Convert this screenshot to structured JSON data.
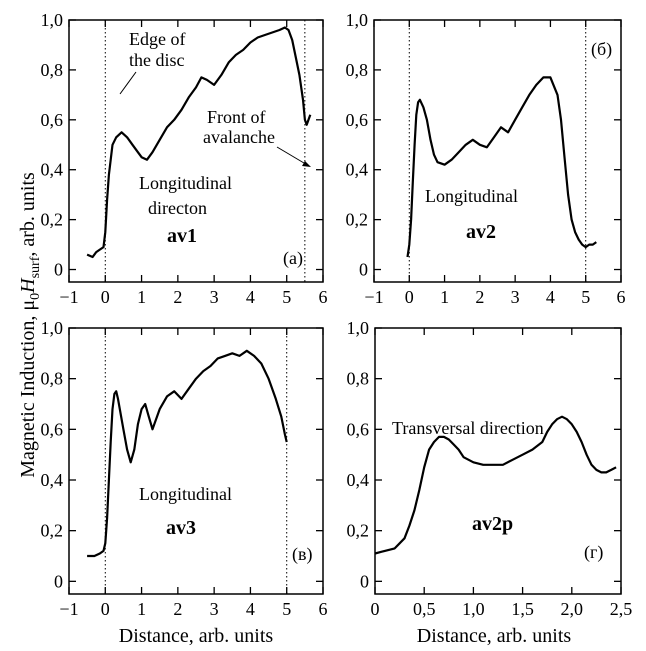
{
  "figure": {
    "ylabel": {
      "pre": "Magnetic Induction, ",
      "mu": "μ",
      "zero": "0",
      "H": "H",
      "surf": "surf",
      "post": ", arb. units"
    },
    "xlabel_bottom_left": "Distance, arb. units",
    "xlabel_bottom_right": "Distance, arb. units"
  },
  "chart_data": [
    {
      "id": "a",
      "type": "line",
      "panel_letter": "(а)",
      "sample": "av1",
      "annotations": [
        "Edge of",
        "the disc",
        "Front of",
        "avalanche",
        "Longitudinal",
        "directon"
      ],
      "xlim": [
        -1,
        6
      ],
      "ylim": [
        -0.05,
        1.0
      ],
      "xticks": [
        -1,
        0,
        1,
        2,
        3,
        4,
        5,
        6
      ],
      "xtick_labels": [
        "−1",
        "0",
        "1",
        "2",
        "3",
        "4",
        "5",
        "6"
      ],
      "yticks": [
        0,
        0.2,
        0.4,
        0.6,
        0.8,
        1.0
      ],
      "ytick_labels": [
        "0",
        "0,2",
        "0,4",
        "0,6",
        "0,8",
        "1,0"
      ],
      "vlines": [
        0,
        5.5
      ],
      "series": [
        {
          "x": [
            -0.5,
            -0.35,
            -0.25,
            -0.15,
            -0.05,
            0,
            0.05,
            0.1,
            0.15,
            0.2,
            0.3,
            0.45,
            0.6,
            0.75,
            0.9,
            1.0,
            1.15,
            1.3,
            1.5,
            1.7,
            1.9,
            2.1,
            2.3,
            2.5,
            2.65,
            2.8,
            3.0,
            3.2,
            3.4,
            3.6,
            3.8,
            4.0,
            4.2,
            4.4,
            4.6,
            4.8,
            4.95,
            5.05,
            5.15,
            5.25,
            5.35,
            5.45,
            5.5,
            5.55,
            5.6,
            5.65
          ],
          "y": [
            0.06,
            0.05,
            0.07,
            0.08,
            0.09,
            0.15,
            0.28,
            0.38,
            0.44,
            0.5,
            0.53,
            0.55,
            0.53,
            0.5,
            0.47,
            0.45,
            0.44,
            0.47,
            0.52,
            0.57,
            0.6,
            0.64,
            0.69,
            0.73,
            0.77,
            0.76,
            0.74,
            0.78,
            0.83,
            0.86,
            0.88,
            0.91,
            0.93,
            0.94,
            0.95,
            0.96,
            0.97,
            0.96,
            0.92,
            0.85,
            0.78,
            0.68,
            0.6,
            0.58,
            0.6,
            0.62
          ]
        }
      ]
    },
    {
      "id": "b",
      "type": "line",
      "panel_letter": "(б)",
      "sample": "av2",
      "annotations": [
        "Longitudinal"
      ],
      "xlim": [
        -1,
        6
      ],
      "ylim": [
        -0.05,
        1.0
      ],
      "xticks": [
        -1,
        0,
        1,
        2,
        3,
        4,
        5,
        6
      ],
      "xtick_labels": [
        "−1",
        "0",
        "1",
        "2",
        "3",
        "4",
        "5",
        "6"
      ],
      "yticks": [
        0,
        0.2,
        0.4,
        0.6,
        0.8,
        1.0
      ],
      "ytick_labels": [
        "0",
        "0,2",
        "0,4",
        "0,6",
        "0,8",
        "1,0"
      ],
      "vlines": [
        0,
        5.0
      ],
      "series": [
        {
          "x": [
            -0.05,
            0.0,
            0.05,
            0.1,
            0.15,
            0.2,
            0.25,
            0.3,
            0.4,
            0.5,
            0.6,
            0.7,
            0.8,
            1.0,
            1.2,
            1.4,
            1.6,
            1.8,
            2.0,
            2.2,
            2.4,
            2.6,
            2.8,
            3.0,
            3.2,
            3.4,
            3.6,
            3.8,
            4.0,
            4.2,
            4.3,
            4.4,
            4.5,
            4.6,
            4.7,
            4.8,
            4.9,
            5.0,
            5.1,
            5.2,
            5.3
          ],
          "y": [
            0.05,
            0.1,
            0.2,
            0.35,
            0.5,
            0.62,
            0.67,
            0.68,
            0.65,
            0.6,
            0.52,
            0.46,
            0.43,
            0.42,
            0.44,
            0.47,
            0.5,
            0.52,
            0.5,
            0.49,
            0.53,
            0.57,
            0.55,
            0.6,
            0.65,
            0.7,
            0.74,
            0.77,
            0.77,
            0.7,
            0.6,
            0.45,
            0.3,
            0.2,
            0.15,
            0.12,
            0.1,
            0.09,
            0.1,
            0.1,
            0.11
          ]
        }
      ]
    },
    {
      "id": "c",
      "type": "line",
      "panel_letter": "(в)",
      "sample": "av3",
      "annotations": [
        "Longitudinal"
      ],
      "xlim": [
        -1,
        6
      ],
      "ylim": [
        -0.05,
        1.0
      ],
      "xticks": [
        -1,
        0,
        1,
        2,
        3,
        4,
        5,
        6
      ],
      "xtick_labels": [
        "−1",
        "0",
        "1",
        "2",
        "3",
        "4",
        "5",
        "6"
      ],
      "yticks": [
        0,
        0.2,
        0.4,
        0.6,
        0.8,
        1.0
      ],
      "ytick_labels": [
        "0",
        "0,2",
        "0,4",
        "0,6",
        "0,8",
        "1,0"
      ],
      "vlines": [
        0,
        5.0
      ],
      "series": [
        {
          "x": [
            -0.5,
            -0.3,
            -0.15,
            -0.05,
            0,
            0.05,
            0.1,
            0.15,
            0.2,
            0.25,
            0.3,
            0.35,
            0.4,
            0.5,
            0.6,
            0.7,
            0.8,
            0.9,
            1.0,
            1.1,
            1.2,
            1.3,
            1.5,
            1.7,
            1.9,
            2.1,
            2.3,
            2.5,
            2.7,
            2.9,
            3.1,
            3.3,
            3.5,
            3.7,
            3.9,
            4.1,
            4.3,
            4.5,
            4.7,
            4.85,
            4.95,
            5.0
          ],
          "y": [
            0.1,
            0.1,
            0.11,
            0.12,
            0.15,
            0.25,
            0.4,
            0.55,
            0.68,
            0.74,
            0.75,
            0.72,
            0.68,
            0.6,
            0.52,
            0.47,
            0.52,
            0.62,
            0.68,
            0.7,
            0.65,
            0.6,
            0.68,
            0.73,
            0.75,
            0.72,
            0.76,
            0.8,
            0.83,
            0.85,
            0.88,
            0.89,
            0.9,
            0.89,
            0.91,
            0.89,
            0.86,
            0.8,
            0.72,
            0.65,
            0.58,
            0.55
          ]
        }
      ]
    },
    {
      "id": "d",
      "type": "line",
      "panel_letter": "(г)",
      "sample": "av2p",
      "annotations": [
        "Transversal direction"
      ],
      "xlim": [
        0,
        2.5
      ],
      "ylim": [
        -0.05,
        1.0
      ],
      "xticks": [
        0,
        0.5,
        1.0,
        1.5,
        2.0,
        2.5
      ],
      "xtick_labels": [
        "0",
        "0,5",
        "1,0",
        "1,5",
        "2,0",
        "2,5"
      ],
      "yticks": [
        0,
        0.2,
        0.4,
        0.6,
        0.8,
        1.0
      ],
      "ytick_labels": [
        "0",
        "0,2",
        "0,4",
        "0,6",
        "0,8",
        "1,0"
      ],
      "vlines": [],
      "series": [
        {
          "x": [
            0,
            0.1,
            0.2,
            0.3,
            0.35,
            0.4,
            0.45,
            0.5,
            0.55,
            0.6,
            0.65,
            0.7,
            0.75,
            0.8,
            0.85,
            0.9,
            1.0,
            1.1,
            1.2,
            1.3,
            1.4,
            1.5,
            1.6,
            1.7,
            1.75,
            1.8,
            1.85,
            1.9,
            1.95,
            2.0,
            2.05,
            2.1,
            2.15,
            2.2,
            2.25,
            2.3,
            2.35,
            2.4,
            2.45
          ],
          "y": [
            0.11,
            0.12,
            0.13,
            0.17,
            0.22,
            0.28,
            0.36,
            0.45,
            0.52,
            0.55,
            0.57,
            0.57,
            0.56,
            0.54,
            0.52,
            0.49,
            0.47,
            0.46,
            0.46,
            0.46,
            0.48,
            0.5,
            0.52,
            0.55,
            0.59,
            0.62,
            0.64,
            0.65,
            0.64,
            0.62,
            0.59,
            0.55,
            0.5,
            0.46,
            0.44,
            0.43,
            0.43,
            0.44,
            0.45
          ]
        }
      ]
    }
  ]
}
